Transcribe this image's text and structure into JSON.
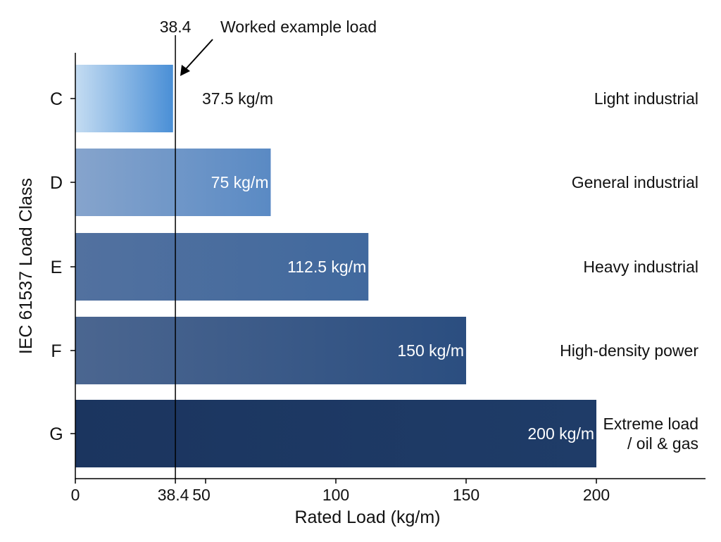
{
  "chart_data": {
    "type": "bar",
    "orientation": "horizontal",
    "xlabel": "Rated Load (kg/m)",
    "ylabel": "IEC 61537 Load Class",
    "xlim": [
      0,
      242
    ],
    "xticks": [
      "0",
      "38.4",
      "50",
      "100",
      "150",
      "200"
    ],
    "xtick_values": [
      0,
      38.4,
      50,
      100,
      150,
      200
    ],
    "grid": false,
    "categories": [
      "C",
      "D",
      "E",
      "F",
      "G"
    ],
    "values": [
      37.5,
      75,
      112.5,
      150,
      200
    ],
    "value_labels": [
      "37.5 kg/m",
      "75 kg/m",
      "112.5 kg/m",
      "150 kg/m",
      "200 kg/m"
    ],
    "descriptions": [
      "Light industrial",
      "General industrial",
      "Heavy industrial",
      "High-density power",
      "Extreme load\n/ oil & gas"
    ],
    "colors": [
      [
        "#c4dcf2",
        "#4a8fd6"
      ],
      [
        "#86a4cc",
        "#5a8ac4"
      ],
      [
        "#52719f",
        "#41699e"
      ],
      [
        "#4b6690",
        "#2b4e80"
      ],
      [
        "#1b355f",
        "#1f3c68"
      ]
    ],
    "reference_line": {
      "value": 38.4,
      "label": "38.4",
      "annotation": "Worked example load"
    }
  }
}
